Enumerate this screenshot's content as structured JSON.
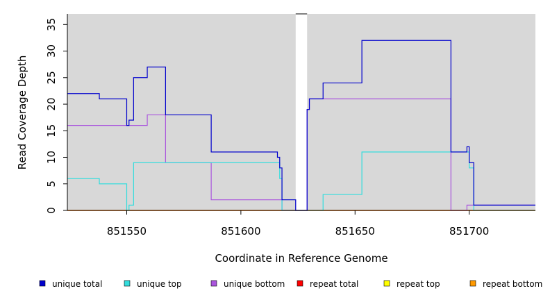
{
  "chart_data": {
    "type": "line",
    "step": true,
    "xlabel": "Coordinate in Reference Genome",
    "ylabel": "Read Coverage Depth",
    "xlim": [
      851524,
      851729
    ],
    "ylim": [
      0,
      37
    ],
    "x_ticks": [
      851550,
      851600,
      851650,
      851700
    ],
    "y_ticks": [
      0,
      5,
      10,
      15,
      20,
      25,
      30,
      35
    ],
    "grid": false,
    "gap_region": [
      851624,
      851629
    ],
    "legend_position": "bottom",
    "series": [
      {
        "name": "unique total",
        "color": "#0000cc",
        "points": [
          [
            851524,
            22
          ],
          [
            851538,
            22
          ],
          [
            851538,
            21
          ],
          [
            851550,
            21
          ],
          [
            851550,
            16
          ],
          [
            851551,
            16
          ],
          [
            851551,
            17
          ],
          [
            851553,
            17
          ],
          [
            851553,
            25
          ],
          [
            851559,
            25
          ],
          [
            851559,
            27
          ],
          [
            851567,
            27
          ],
          [
            851567,
            18
          ],
          [
            851587,
            18
          ],
          [
            851587,
            11
          ],
          [
            851616,
            11
          ],
          [
            851616,
            10
          ],
          [
            851617,
            10
          ],
          [
            851617,
            8
          ],
          [
            851618,
            8
          ],
          [
            851618,
            2
          ],
          [
            851624,
            2
          ],
          [
            851624,
            0
          ],
          [
            851629,
            0
          ],
          [
            851629,
            19
          ],
          [
            851630,
            19
          ],
          [
            851630,
            21
          ],
          [
            851636,
            21
          ],
          [
            851636,
            24
          ],
          [
            851653,
            24
          ],
          [
            851653,
            32
          ],
          [
            851692,
            32
          ],
          [
            851692,
            11
          ],
          [
            851699,
            11
          ],
          [
            851699,
            12
          ],
          [
            851700,
            12
          ],
          [
            851700,
            9
          ],
          [
            851702,
            9
          ],
          [
            851702,
            1
          ],
          [
            851729,
            1
          ]
        ]
      },
      {
        "name": "unique top",
        "color": "#33dddd",
        "points": [
          [
            851524,
            6
          ],
          [
            851538,
            6
          ],
          [
            851538,
            5
          ],
          [
            851550,
            5
          ],
          [
            851550,
            0
          ],
          [
            851551,
            0
          ],
          [
            851551,
            1
          ],
          [
            851553,
            1
          ],
          [
            851553,
            9
          ],
          [
            851617,
            9
          ],
          [
            851617,
            6
          ],
          [
            851618,
            6
          ],
          [
            851618,
            0
          ],
          [
            851636,
            0
          ],
          [
            851636,
            3
          ],
          [
            851653,
            3
          ],
          [
            851653,
            11
          ],
          [
            851700,
            11
          ],
          [
            851700,
            8
          ],
          [
            851702,
            8
          ],
          [
            851702,
            0
          ],
          [
            851729,
            0
          ]
        ]
      },
      {
        "name": "unique bottom",
        "color": "#aa55dd",
        "points": [
          [
            851524,
            16
          ],
          [
            851559,
            16
          ],
          [
            851559,
            18
          ],
          [
            851567,
            18
          ],
          [
            851567,
            9
          ],
          [
            851587,
            9
          ],
          [
            851587,
            2
          ],
          [
            851618,
            2
          ],
          [
            851618,
            0
          ],
          [
            851629,
            0
          ],
          [
            851629,
            19
          ],
          [
            851630,
            19
          ],
          [
            851630,
            21
          ],
          [
            851692,
            21
          ],
          [
            851692,
            0
          ],
          [
            851699,
            0
          ],
          [
            851699,
            1
          ],
          [
            851729,
            1
          ]
        ]
      },
      {
        "name": "repeat total",
        "color": "#ff0000",
        "points": [
          [
            851524,
            0
          ],
          [
            851729,
            0
          ]
        ]
      },
      {
        "name": "repeat top",
        "color": "#ffff00",
        "points": [
          [
            851524,
            0
          ],
          [
            851729,
            0
          ]
        ]
      },
      {
        "name": "repeat bottom",
        "color": "#ff9900",
        "points": [
          [
            851524,
            0
          ],
          [
            851729,
            0
          ]
        ]
      }
    ]
  }
}
